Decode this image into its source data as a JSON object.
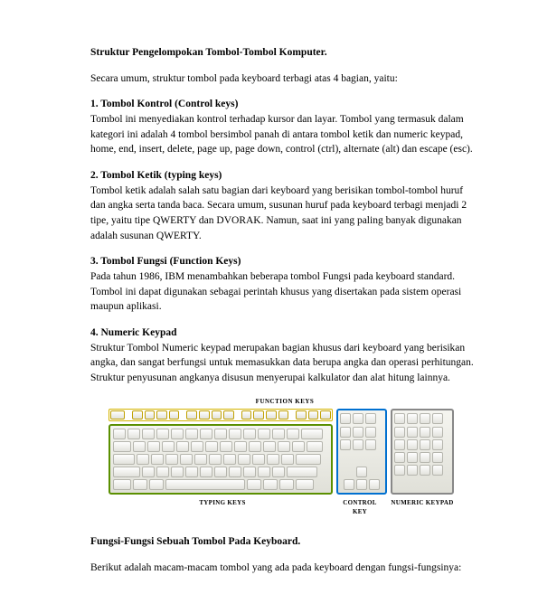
{
  "title": "Struktur Pengelompokan Tombol-Tombol Komputer.",
  "intro": "Secara umum, struktur tombol pada keyboard terbagi atas 4 bagian, yaitu:",
  "sections": [
    {
      "head": "1. Tombol Kontrol (Control keys)",
      "body": "Tombol ini menyediakan kontrol terhadap kursor dan layar. Tombol yang termasuk dalam kategori ini adalah 4 tombol bersimbol panah di antara tombol ketik dan numeric keypad, home, end, insert, delete, page up, page down, control (ctrl), alternate (alt) dan escape (esc)."
    },
    {
      "head": "2. Tombol Ketik (typing keys)",
      "body": "Tombol ketik adalah salah satu bagian dari keyboard yang berisikan tombol-tombol huruf dan angka serta tanda baca. Secara umum, susunan huruf pada keyboard terbagi menjadi 2 tipe, yaitu tipe QWERTY dan DVORAK. Namun, saat ini yang paling banyak digunakan adalah susunan QWERTY."
    },
    {
      "head": "3. Tombol Fungsi (Function Keys)",
      "body": "Pada tahun 1986, IBM menambahkan beberapa tombol Fungsi pada keyboard standard. Tombol ini dapat digunakan sebagai perintah khusus yang disertakan pada sistem operasi maupun aplikasi."
    },
    {
      "head": "4. Numeric Keypad",
      "body": "Struktur Tombol Numeric keypad merupakan bagian khusus dari keyboard yang berisikan angka, dan sangat berfungsi untuk memasukkan data berupa angka dan operasi perhitungan. Struktur penyusunan angkanya disusun menyerupai kalkulator dan alat hitung lainnya."
    }
  ],
  "keyboard": {
    "label_top": "FUNCTION KEYS",
    "label_typing": "TYPING KEYS",
    "label_control": "CONTROL KEY",
    "label_numpad": "NUMERIC KEYPAD",
    "colors": {
      "fn_border": "#d4b400",
      "typing_border": "#5a8f00",
      "control_border": "#0070d0",
      "numpad_border": "#888888",
      "key_top": "#fefefe",
      "key_bot": "#e2e2dc",
      "key_border": "#b5b5ad"
    },
    "fn_keys": 16,
    "nav_top_keys": 3,
    "nav_cluster": 6,
    "num_cols": 4,
    "num_rows": 5,
    "main_rows": [
      [
        14,
        14,
        14,
        14,
        14,
        14,
        14,
        14,
        14,
        14,
        14,
        14,
        14,
        24
      ],
      [
        20,
        14,
        14,
        14,
        14,
        14,
        14,
        14,
        14,
        14,
        14,
        14,
        14,
        18
      ],
      [
        24,
        14,
        14,
        14,
        14,
        14,
        14,
        14,
        14,
        14,
        14,
        14,
        28
      ],
      [
        30,
        14,
        14,
        14,
        14,
        14,
        14,
        14,
        14,
        14,
        14,
        34
      ],
      [
        20,
        16,
        16,
        88,
        16,
        16,
        16,
        20
      ]
    ]
  },
  "footer_title": "Fungsi-Fungsi Sebuah Tombol Pada Keyboard.",
  "footer_line": "Berikut adalah macam-macam tombol yang ada pada keyboard dengan fungsi-fungsinya:"
}
